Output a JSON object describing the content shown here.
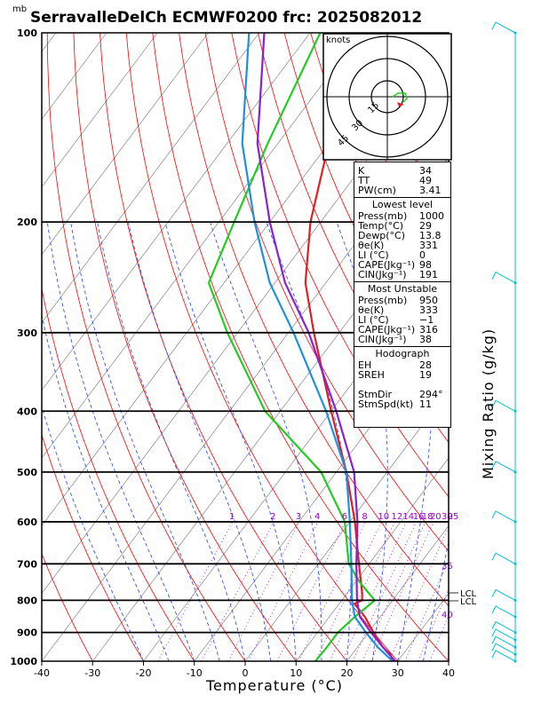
{
  "title": "SerravalleDelCh ECMWF0200  frc: 2025082012",
  "pressure_unit": "mb",
  "xlabel": "Temperature (°C)",
  "mixing_ratio_label": "Mixing Ratio (g/kg)",
  "hodograph": {
    "units": "knots",
    "rings": [
      "15",
      "30",
      "45"
    ]
  },
  "indices": {
    "top": [
      {
        "k": "K",
        "v": "34"
      },
      {
        "k": "TT",
        "v": "49"
      },
      {
        "k": "PW(cm)",
        "v": "3.41"
      }
    ],
    "lowest_title": "Lowest level",
    "lowest": [
      {
        "k": "Press(mb)",
        "v": "1000"
      },
      {
        "k": "Temp(°C)",
        "v": "29"
      },
      {
        "k": "Dewp(°C)",
        "v": "13.8"
      },
      {
        "k": "θe(K)",
        "v": "331"
      },
      {
        "k": "LI (°C)",
        "v": "0"
      },
      {
        "k": "CAPE(Jkg⁻¹)",
        "v": "98"
      },
      {
        "k": "CIN(Jkg⁻¹)",
        "v": "191"
      }
    ],
    "unstable_title": "Most Unstable",
    "unstable": [
      {
        "k": "Press(mb)",
        "v": "950"
      },
      {
        "k": "θe(K)",
        "v": "333"
      },
      {
        "k": "LI (°C)",
        "v": "−1"
      },
      {
        "k": "CAPE(Jkg⁻¹)",
        "v": "316"
      },
      {
        "k": "CIN(Jkg⁻¹)",
        "v": "38"
      }
    ],
    "hodo_title": "Hodograph",
    "hodo": [
      {
        "k": "EH",
        "v": "28"
      },
      {
        "k": "SREH",
        "v": "19"
      },
      {
        "k": "",
        "v": ""
      },
      {
        "k": "StmDir",
        "v": "294°"
      },
      {
        "k": "StmSpd(kt)",
        "v": "11"
      }
    ]
  },
  "chart_data": {
    "type": "line",
    "chart_kind": "skew-T log-P",
    "xlabel": "Temperature (°C)",
    "ylabel": "mb",
    "xlim": [
      -40,
      40
    ],
    "x_ticks": [
      -40,
      -30,
      -20,
      -10,
      0,
      10,
      20,
      30,
      40
    ],
    "ylim_hpa": [
      1000,
      100
    ],
    "y_ticks": [
      1000,
      900,
      800,
      700,
      600,
      500,
      400,
      300,
      200,
      100
    ],
    "mixing_ratio_labels": [
      "1",
      "2",
      "3",
      "4",
      "6",
      "8",
      "10",
      "12",
      "14",
      "16",
      "18",
      "20",
      "25",
      "30",
      "35",
      "40"
    ],
    "lcl_labels": [
      "LCL",
      "LCL"
    ],
    "colors": {
      "temperature": "#e02020",
      "dewpoint": "#22cc22",
      "parcel_lowest": "#1e90e0",
      "parcel_unstable": "#8a20d0",
      "isotherm": "#000000",
      "dry_adiabat": "#ff0000",
      "moist_adiabat": "#2040ff",
      "mixing_ratio": "#9900cc",
      "wind": "#00c0d0"
    },
    "series": [
      {
        "p": [
          1000,
          975,
          950,
          925,
          900,
          850,
          810,
          800,
          780,
          700,
          600,
          500,
          400,
          300,
          250,
          200,
          150,
          100
        ],
        "t": [
          29,
          27.5,
          25,
          23,
          21,
          17,
          13,
          14,
          13,
          8,
          1,
          -8,
          -20,
          -35,
          -44,
          -52,
          -60,
          -68
        ]
      },
      {
        "p": [
          1000,
          950,
          900,
          850,
          800,
          750,
          700,
          600,
          500,
          400,
          300,
          250,
          200,
          150,
          100
        ],
        "t": [
          13.8,
          14,
          14,
          15,
          16.5,
          11,
          6,
          -1,
          -13,
          -33,
          -52,
          -63,
          -67,
          -72,
          -78
        ]
      },
      {
        "p": [
          1000,
          950,
          900,
          850,
          800,
          700,
          600,
          500,
          400,
          300,
          250,
          200,
          150,
          100
        ],
        "t": [
          29,
          24,
          19.5,
          15,
          12,
          6.5,
          0,
          -8,
          -21,
          -39,
          -51,
          -63,
          -77,
          -92
        ]
      },
      {
        "p": [
          1000,
          950,
          900,
          850,
          800,
          700,
          600,
          500,
          400,
          300,
          250,
          200,
          150,
          100
        ],
        "t": [
          29.5,
          25,
          20.5,
          16,
          13,
          7.5,
          1.5,
          -6.5,
          -19,
          -36,
          -48,
          -60,
          -74,
          -89
        ]
      }
    ],
    "wind_barbs": {
      "p": [
        1000,
        975,
        950,
        925,
        900,
        850,
        800,
        700,
        600,
        500,
        400,
        250,
        100
      ]
    }
  }
}
